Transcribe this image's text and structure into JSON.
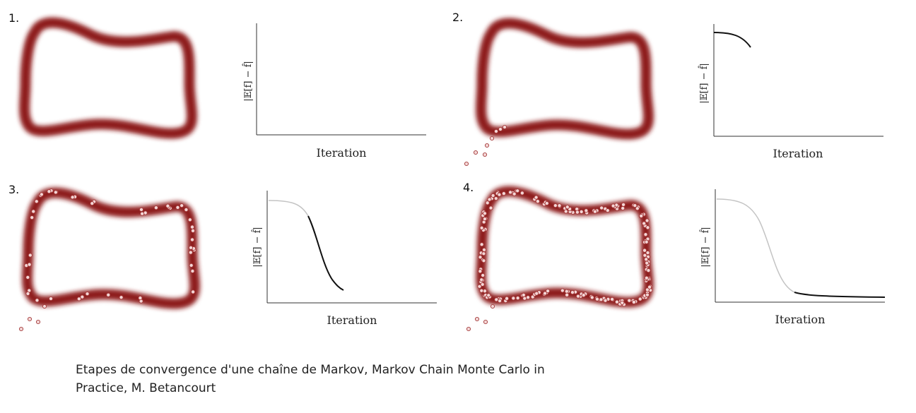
{
  "panels": [
    {
      "number": "1.",
      "x_label": "Iteration",
      "y_label": "|𝔼[f] − f̂|"
    },
    {
      "number": "2.",
      "x_label": "Iteration",
      "y_label": "|𝔼[f] − f̂|"
    },
    {
      "number": "3.",
      "x_label": "Iteration",
      "y_label": "|𝔼[f] − f̂|"
    },
    {
      "number": "4.",
      "x_label": "Iteration",
      "y_label": "|𝔼[f] − f̂|"
    }
  ],
  "caption": {
    "line1": "Etapes de convergence d'une chaîne de Markov, Markov Chain Monte Carlo in",
    "line2": "Practice, M. Betancourt"
  },
  "colors": {
    "ring": "#8e1a1c",
    "sample_fill": "#f4d6d6",
    "sample_stroke": "#a33a3a",
    "curve_active": "#111111",
    "curve_past": "#c4c4c4"
  }
}
